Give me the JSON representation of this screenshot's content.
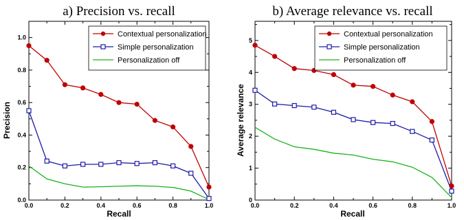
{
  "colors": {
    "contextual": "#c00000",
    "simple": "#1a1aa6",
    "off": "#19b219"
  },
  "chart_data": [
    {
      "type": "line",
      "title": "a) Precision vs. recall",
      "xlabel": "Recall",
      "ylabel": "Precision",
      "xlim": [
        0,
        1
      ],
      "ylim": [
        0,
        1.1
      ],
      "xticks": [
        "0.0",
        "0.2",
        "0.4",
        "0.6",
        "0.8",
        "1.0"
      ],
      "yticks": [
        "0.0",
        "0.2",
        "0.4",
        "0.6",
        "0.8",
        "1.0"
      ],
      "legend_position": "top-right",
      "x": [
        0,
        0.1,
        0.2,
        0.3,
        0.4,
        0.5,
        0.6,
        0.7,
        0.8,
        0.9,
        1.0
      ],
      "series": [
        {
          "name": "Contextual personalization",
          "marker": "filled-circle",
          "values": [
            0.95,
            0.86,
            0.71,
            0.69,
            0.65,
            0.6,
            0.59,
            0.49,
            0.45,
            0.33,
            0.08
          ]
        },
        {
          "name": "Simple personalization",
          "marker": "open-square",
          "values": [
            0.55,
            0.24,
            0.21,
            0.22,
            0.22,
            0.23,
            0.225,
            0.23,
            0.21,
            0.165,
            0.01
          ]
        },
        {
          "name": "Personalization off",
          "marker": "none",
          "values": [
            0.21,
            0.13,
            0.1,
            0.08,
            0.082,
            0.085,
            0.088,
            0.085,
            0.078,
            0.055,
            0.003
          ]
        }
      ]
    },
    {
      "type": "line",
      "title": "b) Average relevance vs. recall",
      "xlabel": "Recall",
      "ylabel": "Average relevance",
      "xlim": [
        0,
        1
      ],
      "ylim": [
        0,
        5.6
      ],
      "xticks": [
        "0.0",
        "0.2",
        "0.4",
        "0.6",
        "0.8",
        "1.0"
      ],
      "yticks": [
        "0",
        "1",
        "2",
        "3",
        "4",
        "5"
      ],
      "legend_position": "top-right",
      "x": [
        0,
        0.1,
        0.2,
        0.3,
        0.4,
        0.5,
        0.6,
        0.7,
        0.8,
        0.9,
        1.0
      ],
      "series": [
        {
          "name": "Contextual personalization",
          "marker": "filled-circle",
          "values": [
            4.85,
            4.5,
            4.12,
            4.06,
            3.93,
            3.6,
            3.56,
            3.29,
            3.08,
            2.46,
            0.44
          ]
        },
        {
          "name": "Simple personalization",
          "marker": "open-square",
          "values": [
            3.44,
            3.01,
            2.96,
            2.91,
            2.75,
            2.52,
            2.43,
            2.4,
            2.15,
            1.88,
            0.28
          ]
        },
        {
          "name": "Personalization off",
          "marker": "none",
          "values": [
            2.28,
            1.91,
            1.67,
            1.59,
            1.47,
            1.41,
            1.28,
            1.2,
            1.03,
            0.71,
            0.08
          ]
        }
      ]
    }
  ]
}
